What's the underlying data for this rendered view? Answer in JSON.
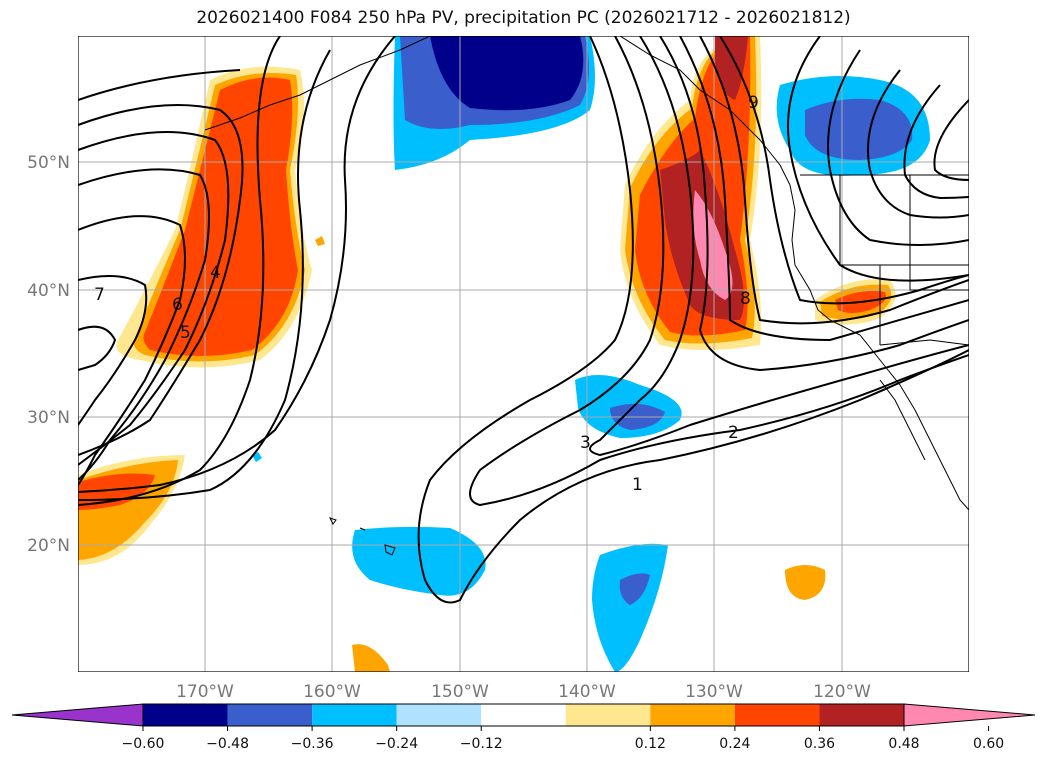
{
  "title": "2026021400 F084 250 hPa PV, precipitation PC (2026021712 - 2026021812)",
  "map": {
    "lat_labels": [
      "50°N",
      "40°N",
      "30°N",
      "20°N"
    ],
    "lon_labels": [
      "170°W",
      "160°W",
      "150°W",
      "140°W",
      "130°W",
      "120°W"
    ],
    "contour_labels": [
      "1",
      "2",
      "3",
      "4",
      "5",
      "6",
      "7",
      "8",
      "9"
    ],
    "colors": {
      "neg_extend": "#9933cc",
      "neg_060": "#00008b",
      "neg_048": "#3a5fcd",
      "neg_036": "#00bfff",
      "neg_024": "#b0e2ff",
      "neutral": "#ffffff",
      "pos_012": "#ffe78f",
      "pos_024": "#ffa500",
      "pos_036": "#ff4500",
      "pos_048": "#b22222",
      "pos_060": "#ff88b0"
    }
  },
  "colorbar": {
    "labels": [
      "−0.60",
      "−0.48",
      "−0.36",
      "−0.24",
      "−0.12",
      "0.12",
      "0.24",
      "0.36",
      "0.48",
      "0.60"
    ],
    "colors": [
      "#9933cc",
      "#00008b",
      "#3a5fcd",
      "#00bfff",
      "#b0e2ff",
      "#ffffff",
      "#ffe78f",
      "#ffa500",
      "#ff4500",
      "#b22222",
      "#ff88b0"
    ]
  }
}
